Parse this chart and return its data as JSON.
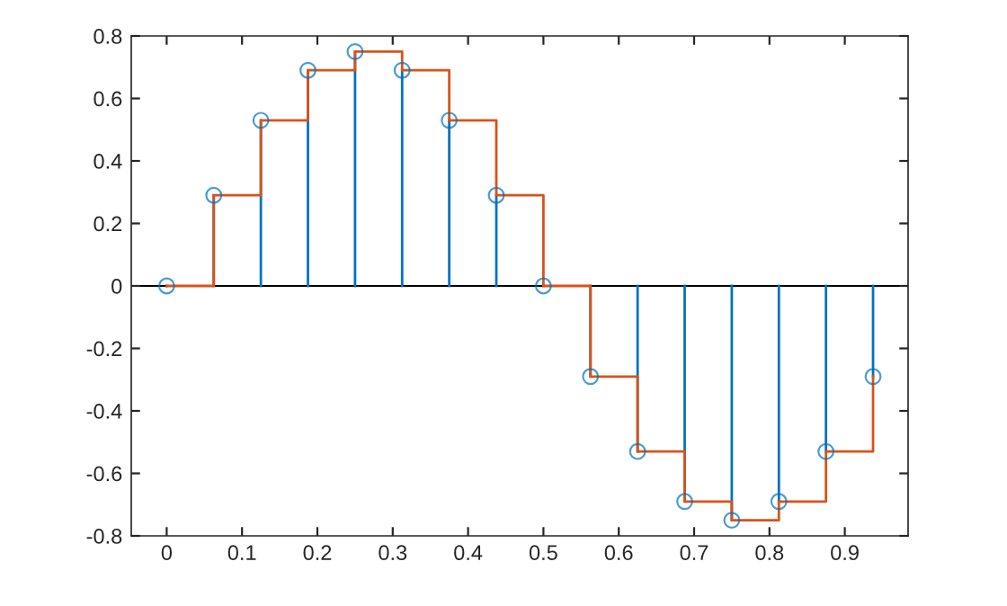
{
  "chart_data": {
    "type": "step",
    "ref_lines": [
      {
        "axis": "y",
        "value": 0,
        "color": "#000000"
      }
    ],
    "x": [
      0,
      0.0625,
      0.125,
      0.1875,
      0.25,
      0.3125,
      0.375,
      0.4375,
      0.5,
      0.5625,
      0.625,
      0.6875,
      0.75,
      0.8125,
      0.875,
      0.9375
    ],
    "series": [
      {
        "type": "lollipop",
        "color": "#0072bd",
        "marker": "circle",
        "values": [
          0,
          0.29,
          0.53,
          0.69,
          0.75,
          0.69,
          0.53,
          0.29,
          0,
          -0.29,
          -0.53,
          -0.69,
          -0.75,
          -0.69,
          -0.53,
          -0.29
        ]
      },
      {
        "color": "#d95319",
        "values": [
          0,
          0.29,
          0.53,
          0.69,
          0.75,
          0.69,
          0.53,
          0.29,
          0,
          -0.29,
          -0.53,
          -0.69,
          -0.75,
          -0.69,
          -0.53,
          -0.29
        ]
      }
    ],
    "xlim": [
      -0.047,
      0.984
    ],
    "ylim": [
      -0.8,
      0.8
    ],
    "xticks": [
      0,
      0.1,
      0.2,
      0.3,
      0.4,
      0.5,
      0.6,
      0.7,
      0.8,
      0.9
    ],
    "yticks": [
      -0.8,
      -0.6,
      -0.4,
      -0.2,
      0,
      0.2,
      0.4,
      0.6,
      0.8
    ],
    "grid": false
  }
}
